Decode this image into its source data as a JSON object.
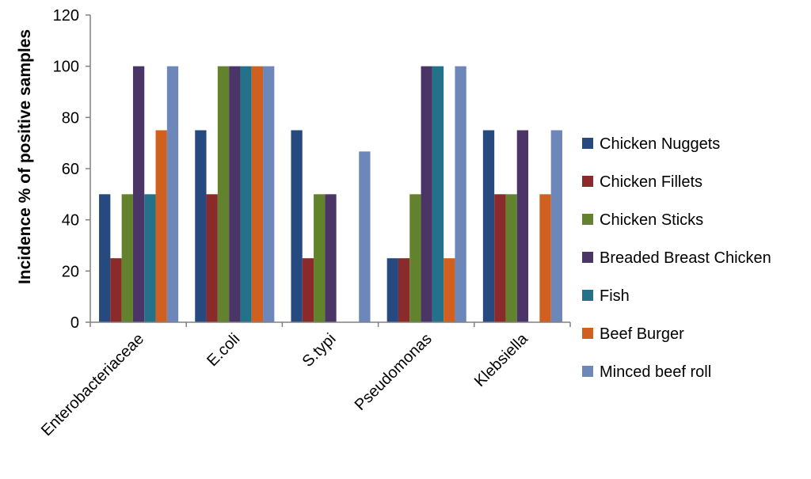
{
  "chart_data": {
    "type": "bar",
    "title": "",
    "xlabel": "",
    "ylabel": "Incidence % of positive samples",
    "ylim": [
      0,
      120
    ],
    "yticks": [
      0,
      20,
      40,
      60,
      80,
      100,
      120
    ],
    "grid": false,
    "legend_position": "right",
    "categories": [
      "Enterobacteriaceae",
      "E.coli",
      "S.typi",
      "Pseudomonas",
      "Klebsiella"
    ],
    "series": [
      {
        "name": "Chicken Nuggets",
        "color": "#264a80",
        "values": [
          50,
          75,
          75,
          25,
          75
        ]
      },
      {
        "name": "Chicken Fillets",
        "color": "#8a2a2a",
        "values": [
          25,
          50,
          25,
          25,
          50
        ]
      },
      {
        "name": "Chicken Sticks",
        "color": "#62822e",
        "values": [
          50,
          100,
          50,
          50,
          50
        ]
      },
      {
        "name": "Breaded Breast Chicken",
        "color": "#4a3566",
        "values": [
          100,
          100,
          50,
          100,
          75
        ]
      },
      {
        "name": "Fish",
        "color": "#23728a",
        "values": [
          50,
          100,
          0,
          100,
          0
        ]
      },
      {
        "name": "Beef Burger",
        "color": "#d06020",
        "values": [
          75,
          100,
          0,
          25,
          50
        ]
      },
      {
        "name": "Minced beef roll",
        "color": "#6d87ba",
        "values": [
          100,
          100,
          66.7,
          100,
          75
        ]
      }
    ]
  }
}
